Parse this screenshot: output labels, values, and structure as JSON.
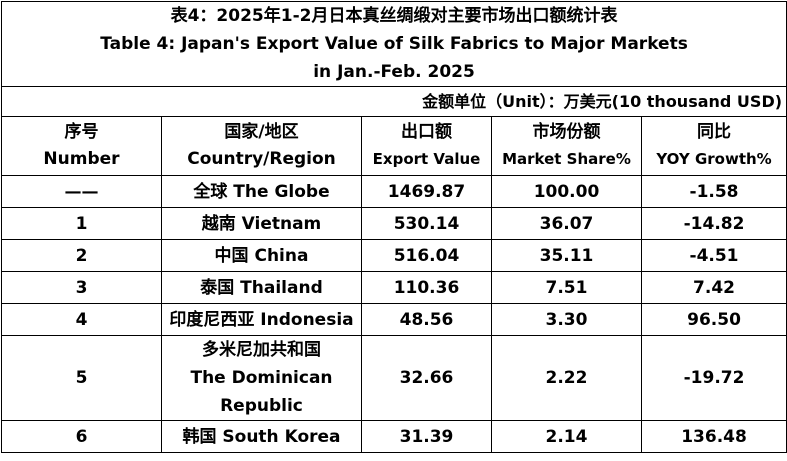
{
  "title": [
    "表4：2025年1-2月日本真丝绸缎对主要市场出口额统计表",
    "Table 4: Japan's Export Value of Silk Fabrics to Major Markets",
    "in Jan.-Feb. 2025"
  ],
  "unit": "金额单位（Unit）：万美元(10 thousand USD)",
  "table": {
    "header": [
      {
        "cn": "序号",
        "en": "Number"
      },
      {
        "cn": "国家/地区",
        "en": "Country/Region"
      },
      {
        "cn": "出口额",
        "en": "Export Value"
      },
      {
        "cn": "市场份额",
        "en": "Market Share%"
      },
      {
        "cn": "同比",
        "en": "YOY Growth%"
      }
    ],
    "rows": [
      [
        "——",
        "全球 The Globe",
        "1469.87",
        "100.00",
        "-1.58"
      ],
      [
        "1",
        "越南 Vietnam",
        "530.14",
        "36.07",
        "-14.82"
      ],
      [
        "2",
        "中国 China",
        "516.04",
        "35.11",
        "-4.51"
      ],
      [
        "3",
        "泰国 Thailand",
        "110.36",
        "7.51",
        "7.42"
      ],
      [
        "4",
        "印度尼西亚 Indonesia",
        "48.56",
        "3.30",
        "96.50"
      ],
      [
        "5",
        "多米尼加共和国\nThe Dominican\nRepublic",
        "32.66",
        "2.22",
        "-19.72"
      ],
      [
        "6",
        "韩国 South Korea",
        "31.39",
        "2.14",
        "136.48"
      ]
    ]
  }
}
